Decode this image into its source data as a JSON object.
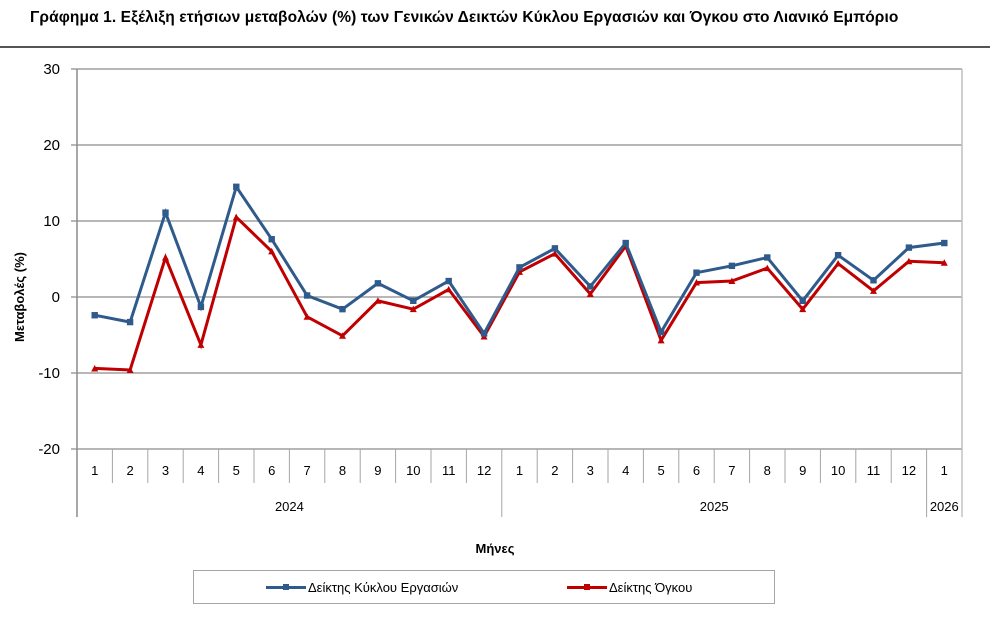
{
  "title": "Γράφημα 1. Εξέλιξη ετήσιων μεταβολών (%) των Γενικών Δεικτών Κύκλου Εργασιών και Όγκου στο Λιανικό Εμπόριο",
  "colors": {
    "turnover": "#2F5A8C",
    "volume": "#C00000",
    "grid": "#8c8c8c",
    "axis": "#8c8c8c"
  },
  "chart_data": {
    "type": "line",
    "title": "Γράφημα 1. Εξέλιξη ετήσιων μεταβολών (%) των Γενικών Δεικτών Κύκλου Εργασιών και Όγκου στο Λιανικό Εμπόριο",
    "xlabel": "Μήνες",
    "ylabel": "Μεταβολές  (%)",
    "ylim": [
      -20,
      30
    ],
    "yticks": [
      30,
      20,
      10,
      0,
      -10,
      -20
    ],
    "grid": true,
    "legend_position": "bottom",
    "categories": [
      "1",
      "2",
      "3",
      "4",
      "5",
      "6",
      "7",
      "8",
      "9",
      "10",
      "11",
      "12",
      "1",
      "2",
      "3",
      "4",
      "5",
      "6",
      "7",
      "8",
      "9",
      "10",
      "11",
      "12",
      "1"
    ],
    "year_groups": [
      {
        "label": "2024",
        "span": 12
      },
      {
        "label": "2025",
        "span": 12
      },
      {
        "label": "2026",
        "span": 1
      }
    ],
    "series": [
      {
        "name": "Δείκτης Κύκλου Εργασιών",
        "color": "#2F5A8C",
        "marker": "square",
        "values": [
          -2.4,
          -3.3,
          11.1,
          -1.3,
          14.5,
          7.6,
          0.2,
          -1.6,
          1.8,
          -0.5,
          2.1,
          -4.8,
          3.9,
          6.4,
          1.4,
          7.1,
          -4.6,
          3.2,
          4.1,
          5.2,
          -0.5,
          5.5,
          2.2,
          6.5,
          7.1
        ]
      },
      {
        "name": "Δείκτης Όγκου",
        "color": "#C00000",
        "marker": "triangle",
        "values": [
          -9.4,
          -9.6,
          5.2,
          -6.3,
          10.5,
          6.0,
          -2.6,
          -5.1,
          -0.5,
          -1.6,
          1.0,
          -5.2,
          3.3,
          5.7,
          0.4,
          6.7,
          -5.7,
          1.9,
          2.1,
          3.8,
          -1.6,
          4.4,
          0.8,
          4.7,
          4.5
        ]
      }
    ]
  }
}
